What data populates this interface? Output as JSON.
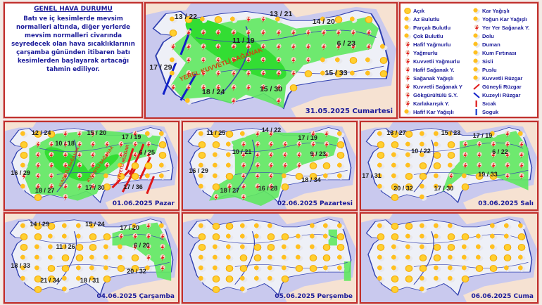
{
  "summary": {
    "title": "GENEL HAVA DURUMU",
    "body": "Batı ve iç kesimlerde mevsim normalleri altında, diğer yerlerde mevsim normalleri civarında seyredecek olan hava sıcaklıklarının çarşamba gününden itibaren batı kesimlerden başlayarak artacağı tahmin ediliyor."
  },
  "legend": {
    "left": [
      {
        "label": "Açık",
        "icon": "sun-icon"
      },
      {
        "label": "Az Bulutlu",
        "icon": "mostly-sunny-icon"
      },
      {
        "label": "Parçalı Bulutlu",
        "icon": "partly-cloudy-icon"
      },
      {
        "label": "Çok Bulutlu",
        "icon": "cloudy-icon"
      },
      {
        "label": "Hafif Yağmurlu",
        "icon": "light-rain-icon"
      },
      {
        "label": "Yağmurlu",
        "icon": "rain-icon"
      },
      {
        "label": "Kuvvetli Yağmurlu",
        "icon": "heavy-rain-icon"
      },
      {
        "label": "Hafif Sağanak Y.",
        "icon": "light-shower-icon"
      },
      {
        "label": "Sağanak Yağışlı",
        "icon": "shower-icon"
      },
      {
        "label": "Kuvvetli Sağanak Y",
        "icon": "heavy-shower-icon"
      },
      {
        "label": "Gökgürültülü S.Y.",
        "icon": "thunderstorm-icon"
      },
      {
        "label": "Karlakarışık Y.",
        "icon": "sleet-icon"
      },
      {
        "label": "Hafif Kar Yağışlı",
        "icon": "light-snow-icon"
      }
    ],
    "right": [
      {
        "label": "Kar Yağışlı",
        "icon": "snow-icon"
      },
      {
        "label": "Yoğun Kar Yağışlı",
        "icon": "heavy-snow-icon"
      },
      {
        "label": "Yer Yer Sağanak Y.",
        "icon": "scattered-shower-icon"
      },
      {
        "label": "Dolu",
        "icon": "hail-icon"
      },
      {
        "label": "Duman",
        "icon": "smoke-icon"
      },
      {
        "label": "Kum Fırtınası",
        "icon": "sandstorm-icon"
      },
      {
        "label": "Sisli",
        "icon": "fog-icon"
      },
      {
        "label": "Puslu",
        "icon": "haze-icon"
      },
      {
        "label": "Kuvvetli Rüzgar",
        "icon": "strong-wind-icon"
      },
      {
        "label": "Güneyli Rüzgar",
        "icon": "south-wind-arrow-icon"
      },
      {
        "label": "Kuzeyli Rüzgar",
        "icon": "north-wind-arrow-icon"
      },
      {
        "label": "Sıcak",
        "icon": "hot-thermometer-icon"
      },
      {
        "label": "Soguk",
        "icon": "cold-thermometer-icon"
      }
    ]
  },
  "colors": {
    "rain_area": "#5fe85f",
    "land": "#eef0f7",
    "sea": "#c9c9ee",
    "neighbor": "#f6e2d2",
    "border": "#c0302c",
    "text": "#1c1c9a",
    "south_wind": "#e01818",
    "north_wind": "#1020c8"
  },
  "maps": [
    {
      "date": "31.05.2025 Cumartesi",
      "temps": [
        "13 / 22",
        "13 / 21",
        "14 / 20",
        "11 / 19",
        "6 / 23",
        "17 / 29",
        "15 / 33",
        "15 / 30",
        "18 / 24"
      ],
      "annotations": [
        "YEREL KUVVETLİ SAĞANAK"
      ]
    },
    {
      "date": "01.06.2025 Pazar",
      "temps": [
        "12 / 24",
        "15 / 20",
        "17 / 19",
        "10 / 18",
        "6 / 25",
        "16 / 29",
        "17 / 36",
        "18 / 27",
        "17 / 30"
      ],
      "annotations": [
        "KUVVETLİ SAĞANAK",
        "KUVVETLİ SAĞANAK",
        "KUVVETLİ RÜZGAR"
      ]
    },
    {
      "date": "02.06.2025 Pazartesi",
      "temps": [
        "11 / 25",
        "14 / 22",
        "17 / 19",
        "10 / 21",
        "9 / 23",
        "16 / 29",
        "18 / 34",
        "18 / 27",
        "16 / 28"
      ],
      "annotations": []
    },
    {
      "date": "03.06.2025 Salı",
      "temps": [
        "13 / 27",
        "15 / 23",
        "17 / 19",
        "10 / 22",
        "6 / 22",
        "17 / 31",
        "19 / 33",
        "20 / 32",
        "17 / 30"
      ],
      "annotations": []
    },
    {
      "date": "04.06.2025 Çarşamba",
      "temps": [
        "14 / 29",
        "15 / 24",
        "17 / 20",
        "11 / 26",
        "6 / 20",
        "18 / 33",
        "20 / 32",
        "21 / 34",
        "18 / 31"
      ],
      "annotations": []
    },
    {
      "date": "05.06.2025 Perşembe",
      "temps": [],
      "annotations": []
    },
    {
      "date": "06.06.2025 Cuma",
      "temps": [],
      "annotations": []
    }
  ]
}
